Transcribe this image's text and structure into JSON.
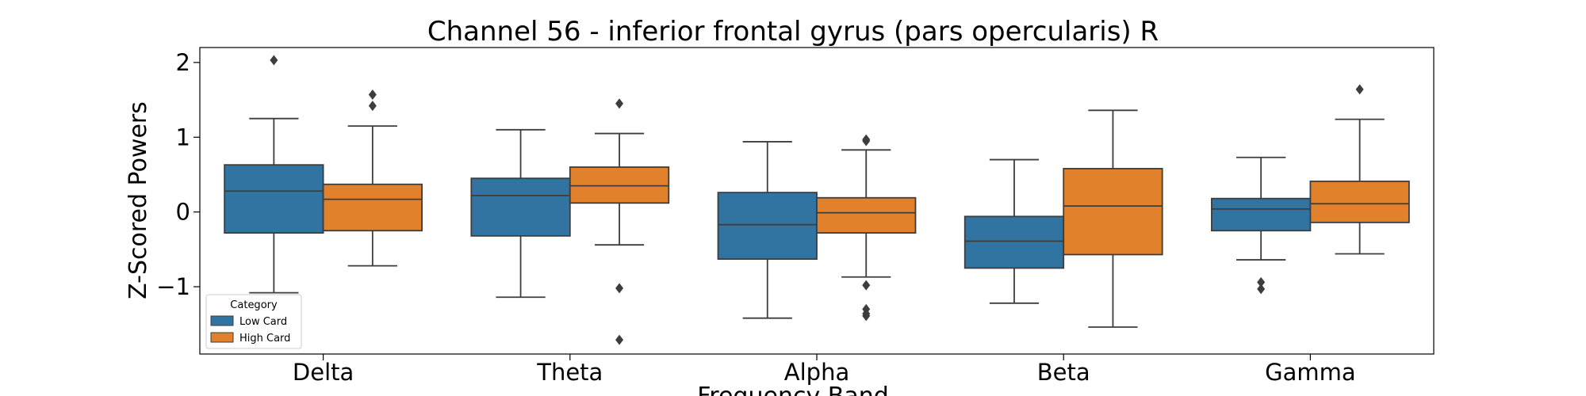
{
  "chart_data": {
    "type": "box",
    "title": "Channel 56 - inferior frontal gyrus (pars opercularis) R",
    "xlabel": "Frequency Band",
    "ylabel": "Z-Scored Powers",
    "categories": [
      "Delta",
      "Theta",
      "Alpha",
      "Beta",
      "Gamma"
    ],
    "ylim": [
      -1.9,
      2.2
    ],
    "yticks": [
      -1,
      0,
      1,
      2
    ],
    "ytick_labels": [
      "−1",
      "0",
      "1",
      "2"
    ],
    "grid": false,
    "legend": {
      "title": "Category",
      "placement": "lower-left"
    },
    "series": [
      {
        "name": "Low Card",
        "color": "#3274a1",
        "boxes": [
          {
            "whisker_low": -1.08,
            "q1": -0.28,
            "median": 0.28,
            "q3": 0.63,
            "whisker_high": 1.25,
            "outliers": [
              2.03
            ]
          },
          {
            "whisker_low": -1.14,
            "q1": -0.32,
            "median": 0.22,
            "q3": 0.45,
            "whisker_high": 1.1,
            "outliers": []
          },
          {
            "whisker_low": -1.42,
            "q1": -0.63,
            "median": -0.17,
            "q3": 0.26,
            "whisker_high": 0.94,
            "outliers": []
          },
          {
            "whisker_low": -1.22,
            "q1": -0.75,
            "median": -0.39,
            "q3": -0.06,
            "whisker_high": 0.7,
            "outliers": []
          },
          {
            "whisker_low": -0.64,
            "q1": -0.25,
            "median": 0.04,
            "q3": 0.18,
            "whisker_high": 0.73,
            "outliers": [
              -0.94,
              -1.03
            ]
          }
        ]
      },
      {
        "name": "High Card",
        "color": "#e1812c",
        "boxes": [
          {
            "whisker_low": -0.72,
            "q1": -0.25,
            "median": 0.17,
            "q3": 0.37,
            "whisker_high": 1.15,
            "outliers": [
              1.57,
              1.42
            ]
          },
          {
            "whisker_low": -0.44,
            "q1": 0.12,
            "median": 0.35,
            "q3": 0.6,
            "whisker_high": 1.05,
            "outliers": [
              1.45,
              -1.02,
              -1.71
            ]
          },
          {
            "whisker_low": -0.87,
            "q1": -0.28,
            "median": -0.01,
            "q3": 0.19,
            "whisker_high": 0.83,
            "outliers": [
              0.97,
              0.95,
              -0.98,
              -1.3,
              -1.36,
              -1.39
            ]
          },
          {
            "whisker_low": -1.54,
            "q1": -0.57,
            "median": 0.08,
            "q3": 0.58,
            "whisker_high": 1.36,
            "outliers": []
          },
          {
            "whisker_low": -0.56,
            "q1": -0.14,
            "median": 0.11,
            "q3": 0.41,
            "whisker_high": 1.24,
            "outliers": [
              1.64
            ]
          }
        ]
      }
    ]
  }
}
